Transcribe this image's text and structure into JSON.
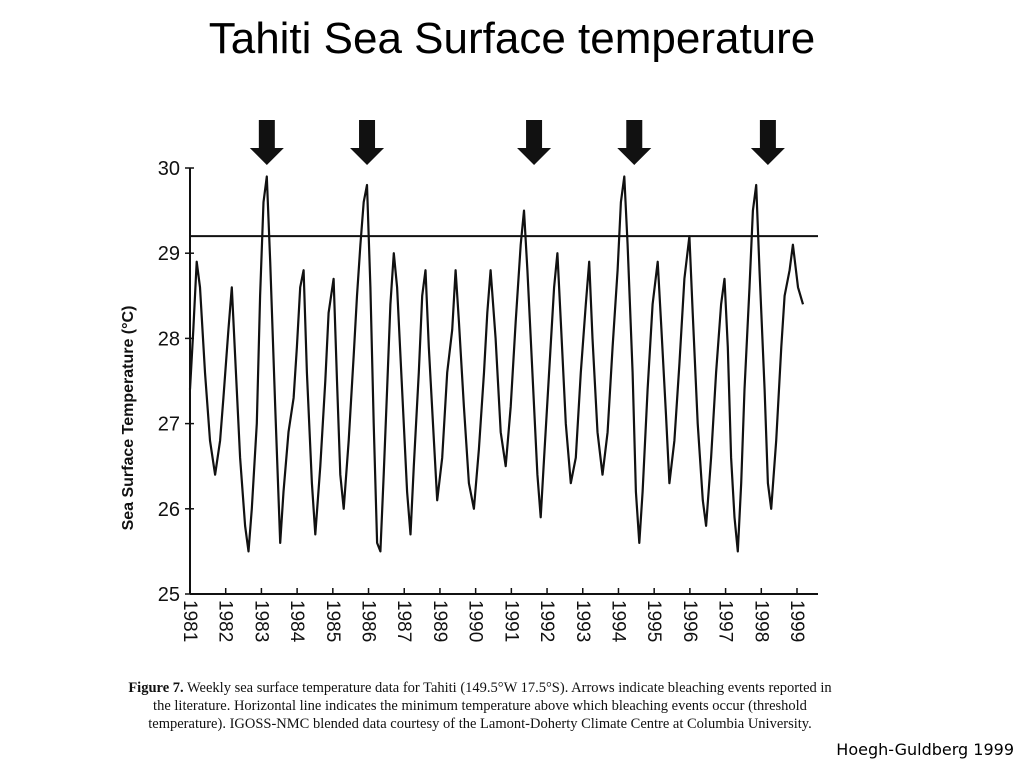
{
  "slide": {
    "title": "Tahiti Sea Surface temperature",
    "credit": "Hoegh-Guldberg 1999"
  },
  "caption": {
    "label": "Figure 7.",
    "text": "Weekly sea surface temperature data for Tahiti (149.5°W 17.5°S).  Arrows indicate bleaching events reported in the literature.  Horizontal line indicates the minimum temperature above  which bleaching events occur (threshold temperature).  IGOSS-NMC blended data courtesy  of the Lamont-Doherty Climate Centre at Columbia University."
  },
  "chart_data": {
    "type": "line",
    "title": "",
    "xlabel": "",
    "ylabel": "Sea Surface Temperature (°C)",
    "xlim": [
      1981,
      1999.8
    ],
    "ylim": [
      25,
      30
    ],
    "yticks": [
      25,
      26,
      27,
      28,
      29,
      30
    ],
    "xticks": [
      1981,
      1982,
      1983,
      1984,
      1985,
      1986,
      1987,
      1989,
      1990,
      1991,
      1992,
      1993,
      1994,
      1995,
      1996,
      1997,
      1998,
      1999
    ],
    "threshold": 29.2,
    "bleaching_events": [
      1983.3,
      1986.3,
      1991.3,
      1994.3,
      1998.3
    ],
    "grid": false,
    "color": "#111111",
    "series": [
      {
        "values": [
          [
            1981.0,
            27.4
          ],
          [
            1981.1,
            28.1
          ],
          [
            1981.2,
            28.9
          ],
          [
            1981.3,
            28.6
          ],
          [
            1981.45,
            27.6
          ],
          [
            1981.6,
            26.8
          ],
          [
            1981.75,
            26.4
          ],
          [
            1981.9,
            26.8
          ],
          [
            1982.0,
            27.3
          ],
          [
            1982.15,
            28.1
          ],
          [
            1982.25,
            28.6
          ],
          [
            1982.35,
            27.8
          ],
          [
            1982.5,
            26.6
          ],
          [
            1982.65,
            25.8
          ],
          [
            1982.75,
            25.5
          ],
          [
            1982.85,
            26.0
          ],
          [
            1983.0,
            27.0
          ],
          [
            1983.1,
            28.5
          ],
          [
            1983.2,
            29.6
          ],
          [
            1983.3,
            29.9
          ],
          [
            1983.4,
            28.9
          ],
          [
            1983.55,
            27.2
          ],
          [
            1983.7,
            25.6
          ],
          [
            1983.8,
            26.2
          ],
          [
            1983.95,
            26.9
          ],
          [
            1984.1,
            27.3
          ],
          [
            1984.2,
            27.9
          ],
          [
            1984.3,
            28.6
          ],
          [
            1984.4,
            28.8
          ],
          [
            1984.5,
            27.6
          ],
          [
            1984.65,
            26.3
          ],
          [
            1984.75,
            25.7
          ],
          [
            1984.9,
            26.5
          ],
          [
            1985.05,
            27.5
          ],
          [
            1985.15,
            28.3
          ],
          [
            1985.3,
            28.7
          ],
          [
            1985.4,
            27.5
          ],
          [
            1985.5,
            26.4
          ],
          [
            1985.6,
            26.0
          ],
          [
            1985.75,
            26.8
          ],
          [
            1985.9,
            27.8
          ],
          [
            1986.0,
            28.5
          ],
          [
            1986.1,
            29.1
          ],
          [
            1986.2,
            29.6
          ],
          [
            1986.3,
            29.8
          ],
          [
            1986.4,
            28.6
          ],
          [
            1986.5,
            27.0
          ],
          [
            1986.6,
            25.6
          ],
          [
            1986.7,
            25.5
          ],
          [
            1986.8,
            26.4
          ],
          [
            1986.9,
            27.4
          ],
          [
            1987.0,
            28.4
          ],
          [
            1987.1,
            29.0
          ],
          [
            1987.2,
            28.6
          ],
          [
            1987.35,
            27.4
          ],
          [
            1987.5,
            26.2
          ],
          [
            1987.6,
            25.7
          ],
          [
            1987.7,
            26.5
          ],
          [
            1987.85,
            27.6
          ],
          [
            1987.95,
            28.5
          ],
          [
            1988.05,
            28.8
          ],
          [
            1988.15,
            27.9
          ],
          [
            1988.3,
            26.8
          ],
          [
            1988.4,
            26.1
          ],
          [
            1988.55,
            26.6
          ],
          [
            1988.7,
            27.6
          ],
          [
            1988.85,
            28.1
          ],
          [
            1988.95,
            28.8
          ],
          [
            1989.05,
            28.2
          ],
          [
            1989.2,
            27.2
          ],
          [
            1989.35,
            26.3
          ],
          [
            1989.5,
            26.0
          ],
          [
            1989.65,
            26.7
          ],
          [
            1989.8,
            27.6
          ],
          [
            1989.9,
            28.3
          ],
          [
            1990.0,
            28.8
          ],
          [
            1990.15,
            28.0
          ],
          [
            1990.3,
            26.9
          ],
          [
            1990.45,
            26.5
          ],
          [
            1990.6,
            27.2
          ],
          [
            1990.75,
            28.2
          ],
          [
            1990.9,
            29.1
          ],
          [
            1991.0,
            29.5
          ],
          [
            1991.1,
            28.8
          ],
          [
            1991.25,
            27.6
          ],
          [
            1991.4,
            26.4
          ],
          [
            1991.5,
            25.9
          ],
          [
            1991.6,
            26.6
          ],
          [
            1991.75,
            27.6
          ],
          [
            1991.9,
            28.6
          ],
          [
            1992.0,
            29.0
          ],
          [
            1992.1,
            28.2
          ],
          [
            1992.25,
            27.0
          ],
          [
            1992.4,
            26.3
          ],
          [
            1992.55,
            26.6
          ],
          [
            1992.7,
            27.6
          ],
          [
            1992.85,
            28.4
          ],
          [
            1992.95,
            28.9
          ],
          [
            1993.05,
            28.0
          ],
          [
            1993.2,
            26.9
          ],
          [
            1993.35,
            26.4
          ],
          [
            1993.5,
            26.9
          ],
          [
            1993.65,
            27.9
          ],
          [
            1993.8,
            28.8
          ],
          [
            1993.9,
            29.6
          ],
          [
            1994.0,
            29.9
          ],
          [
            1994.1,
            29.1
          ],
          [
            1994.25,
            27.6
          ],
          [
            1994.35,
            26.2
          ],
          [
            1994.45,
            25.6
          ],
          [
            1994.55,
            26.2
          ],
          [
            1994.7,
            27.4
          ],
          [
            1994.85,
            28.4
          ],
          [
            1995.0,
            28.9
          ],
          [
            1995.1,
            28.2
          ],
          [
            1995.25,
            27.1
          ],
          [
            1995.35,
            26.3
          ],
          [
            1995.5,
            26.8
          ],
          [
            1995.65,
            27.7
          ],
          [
            1995.8,
            28.7
          ],
          [
            1995.95,
            29.2
          ],
          [
            1996.05,
            28.3
          ],
          [
            1996.2,
            27.0
          ],
          [
            1996.35,
            26.1
          ],
          [
            1996.45,
            25.8
          ],
          [
            1996.6,
            26.6
          ],
          [
            1996.75,
            27.6
          ],
          [
            1996.9,
            28.4
          ],
          [
            1997.0,
            28.7
          ],
          [
            1997.1,
            27.9
          ],
          [
            1997.2,
            26.6
          ],
          [
            1997.3,
            25.9
          ],
          [
            1997.4,
            25.5
          ],
          [
            1997.5,
            26.3
          ],
          [
            1997.6,
            27.4
          ],
          [
            1997.75,
            28.6
          ],
          [
            1997.85,
            29.5
          ],
          [
            1997.95,
            29.8
          ],
          [
            1998.05,
            28.8
          ],
          [
            1998.2,
            27.4
          ],
          [
            1998.3,
            26.3
          ],
          [
            1998.4,
            26.0
          ],
          [
            1998.55,
            26.8
          ],
          [
            1998.7,
            27.9
          ],
          [
            1998.8,
            28.5
          ],
          [
            1998.95,
            28.8
          ],
          [
            1999.05,
            29.1
          ],
          [
            1999.2,
            28.6
          ],
          [
            1999.35,
            28.4
          ]
        ]
      }
    ]
  }
}
